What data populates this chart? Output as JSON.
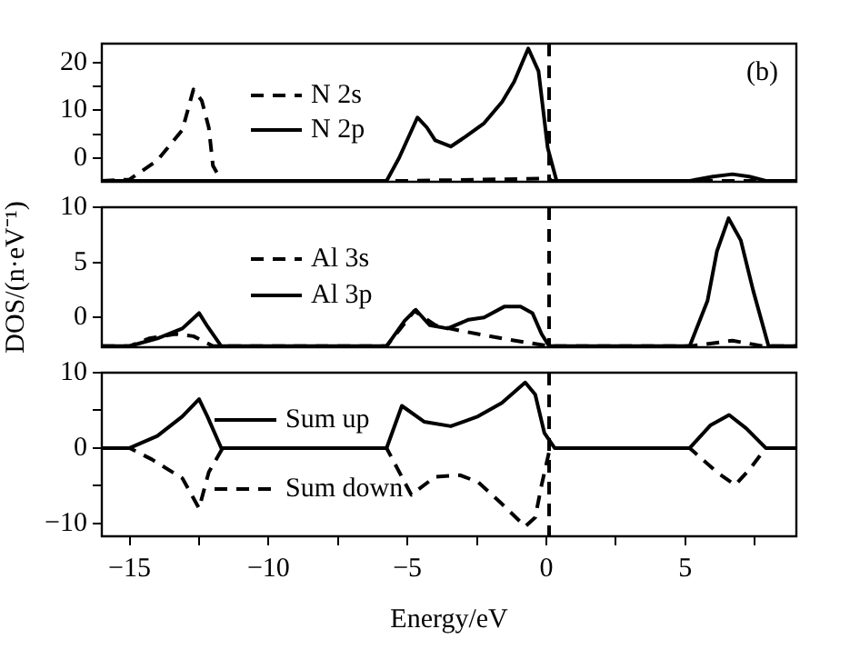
{
  "chart_data": [
    {
      "type": "line",
      "xlim": [
        -16,
        9
      ],
      "ylim": [
        -5,
        24
      ],
      "yticks": [
        0,
        {
          "value": 5,
          "label": null
        },
        10,
        {
          "value": 15,
          "label": null
        },
        20
      ],
      "tick_labels": "y",
      "marker": "none",
      "grid": false,
      "legend": "left",
      "annotations": [
        "(b)"
      ],
      "ref_lines": [
        {
          "axis": "x",
          "value": 0.1,
          "color": "#000000",
          "line_style": "dashed"
        }
      ],
      "series": [
        {
          "name": "N 2s",
          "color": "#000000",
          "line_style": "dashed",
          "x": [
            -16,
            -15,
            -14,
            -13.1,
            -12.7,
            -12.4,
            -12.15,
            -12.0,
            -11.7,
            -5,
            0.1,
            0.2,
            9
          ],
          "values": [
            -4.8,
            -4.5,
            -0.5,
            5.9,
            14.4,
            12,
            6.4,
            -1.6,
            -4.8,
            -4.8,
            -4.3,
            -4.8,
            -4.8
          ]
        },
        {
          "name": "N 2p",
          "color": "#000000",
          "line_style": "solid",
          "x": [
            -16,
            -5.75,
            -5.3,
            -4.64,
            -4.3,
            -4.0,
            -3.44,
            -2.9,
            -2.24,
            -1.59,
            -1.16,
            -0.65,
            -0.28,
            0.05,
            0.37,
            5.16,
            6.0,
            6.7,
            7.3,
            7.9,
            9
          ],
          "values": [
            -4.8,
            -4.8,
            0,
            8.5,
            6.4,
            3.7,
            2.4,
            4.5,
            7.3,
            11.8,
            16,
            23,
            18.2,
            2.1,
            -4.8,
            -4.8,
            -3.9,
            -3.4,
            -3.9,
            -4.8,
            -4.8
          ]
        }
      ]
    },
    {
      "type": "line",
      "xlim": [
        -16,
        9
      ],
      "ylim": [
        -2.7,
        10
      ],
      "yticks": [
        0,
        5,
        10
      ],
      "tick_labels": "y",
      "ylabel": "DOS/(n·eV⁻¹)",
      "marker": "none",
      "grid": false,
      "legend": "left",
      "ref_lines": [
        {
          "axis": "x",
          "value": 0.1,
          "color": "#000000",
          "line_style": "dashed"
        }
      ],
      "series": [
        {
          "name": "Al 3s",
          "color": "#000000",
          "line_style": "dashed",
          "x": [
            -16,
            -15,
            -14.3,
            -13.35,
            -12.7,
            -12.0,
            -5.75,
            -4.75,
            -4.0,
            -3.1,
            -1.6,
            0.1,
            5.2,
            6.7,
            7.8,
            9
          ],
          "values": [
            -2.6,
            -2.6,
            -1.9,
            -1.5,
            -1.7,
            -2.6,
            -2.6,
            0.6,
            -0.7,
            -1.2,
            -1.9,
            -2.6,
            -2.6,
            -2.1,
            -2.6,
            -2.6
          ]
        },
        {
          "name": "Al 3p",
          "color": "#000000",
          "line_style": "solid",
          "x": [
            -16,
            -15,
            -14.0,
            -13.1,
            -12.5,
            -12.2,
            -11.7,
            -5.75,
            -5.1,
            -4.7,
            -4.2,
            -3.55,
            -2.8,
            -2.24,
            -1.5,
            -0.93,
            -0.5,
            -0.17,
            0.1,
            5.16,
            5.8,
            6.14,
            6.56,
            7.0,
            7.45,
            8.0,
            9
          ],
          "values": [
            -2.6,
            -2.6,
            -1.9,
            -1.0,
            0.4,
            -0.8,
            -2.6,
            -2.6,
            -0.3,
            0.7,
            -0.7,
            -1.0,
            -0.2,
            0,
            1.0,
            1.0,
            0.4,
            -1.5,
            -2.6,
            -2.6,
            1.5,
            6.0,
            9.0,
            7.0,
            2.4,
            -2.6,
            -2.6
          ]
        }
      ]
    },
    {
      "type": "line",
      "xlim": [
        -16,
        9
      ],
      "ylim": [
        -11.7,
        10
      ],
      "xticks": [
        -15,
        {
          "value": -12.5,
          "label": null
        },
        -10,
        {
          "value": -7.5,
          "label": null
        },
        -5,
        {
          "value": -2.5,
          "label": null
        },
        0,
        {
          "value": 2.5,
          "label": null
        },
        5,
        {
          "value": 7.5,
          "label": null
        }
      ],
      "yticks": [
        -10,
        {
          "value": -5,
          "label": null
        },
        0,
        {
          "value": 5,
          "label": null
        },
        10
      ],
      "xlabel": "Energy/eV",
      "marker": "none",
      "grid": false,
      "legend": "left",
      "ref_lines": [
        {
          "axis": "x",
          "value": 0.1,
          "color": "#000000",
          "line_style": "dashed"
        }
      ],
      "series": [
        {
          "name": "Sum up",
          "color": "#000000",
          "line_style": "solid",
          "x": [
            -16,
            -15,
            -14.0,
            -13.1,
            -12.5,
            -12.2,
            -11.7,
            -5.75,
            -5.2,
            -4.4,
            -3.44,
            -2.46,
            -1.6,
            -0.76,
            -0.4,
            -0.07,
            0.3,
            5.16,
            5.9,
            6.58,
            7.2,
            7.9,
            9
          ],
          "values": [
            0,
            0,
            1.6,
            4.2,
            6.5,
            4.2,
            0,
            0,
            5.6,
            3.5,
            2.9,
            4.2,
            6,
            8.7,
            7.1,
            2,
            0,
            0,
            3.0,
            4.4,
            2.6,
            0,
            0
          ]
        },
        {
          "name": "Sum down",
          "color": "#000000",
          "line_style": "dashed",
          "x": [
            -16,
            -15,
            -14.2,
            -13.1,
            -12.5,
            -12.15,
            -11.65,
            -5.75,
            -4.86,
            -4.0,
            -3.1,
            -2.46,
            -1.6,
            -0.76,
            -0.4,
            -0.17,
            0.1,
            0.3,
            5.16,
            6.14,
            6.8,
            7.34,
            7.9,
            9
          ],
          "values": [
            0,
            0,
            -1.5,
            -4,
            -8,
            -3.2,
            0,
            0,
            -6.2,
            -3.8,
            -3.6,
            -4.5,
            -7.4,
            -10.4,
            -9.2,
            -4.9,
            -0.5,
            0,
            0,
            -3.2,
            -4.9,
            -2.7,
            0,
            0
          ]
        }
      ]
    }
  ]
}
